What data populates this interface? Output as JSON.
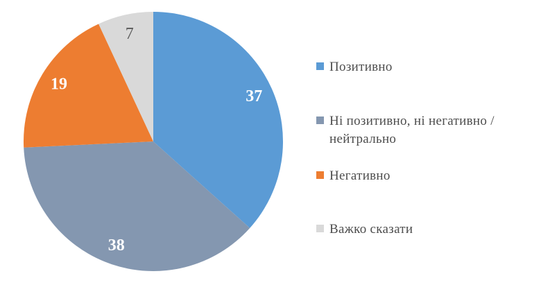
{
  "chart_data": {
    "type": "pie",
    "title": "",
    "categories": [
      "Позитивно",
      "Ні позитивно, ні негативно / нейтрально",
      "Негативно",
      "Важко сказати"
    ],
    "values": [
      37,
      38,
      19,
      7
    ],
    "data_labels": [
      "37",
      "38",
      "19",
      "7"
    ],
    "colors": [
      "#5B9BD5",
      "#8497B0",
      "#ED7D31",
      "#D9D9D9"
    ],
    "label_colors": [
      "#FFFFFF",
      "#FFFFFF",
      "#FFFFFF",
      "#595959"
    ],
    "label_weights": [
      "bold",
      "bold",
      "bold",
      "normal"
    ],
    "start_angle_deg": 0,
    "direction": "clockwise",
    "legend_position": "right",
    "grid": false,
    "background": "#FFFFFF"
  },
  "legend": {
    "items": [
      {
        "label": "Позитивно",
        "color": "#5B9BD5"
      },
      {
        "label": "Ні позитивно, ні негативно / нейтрально",
        "color": "#8497B0"
      },
      {
        "label": "Негативно",
        "color": "#ED7D31"
      },
      {
        "label": "Важко сказати",
        "color": "#D9D9D9"
      }
    ]
  }
}
